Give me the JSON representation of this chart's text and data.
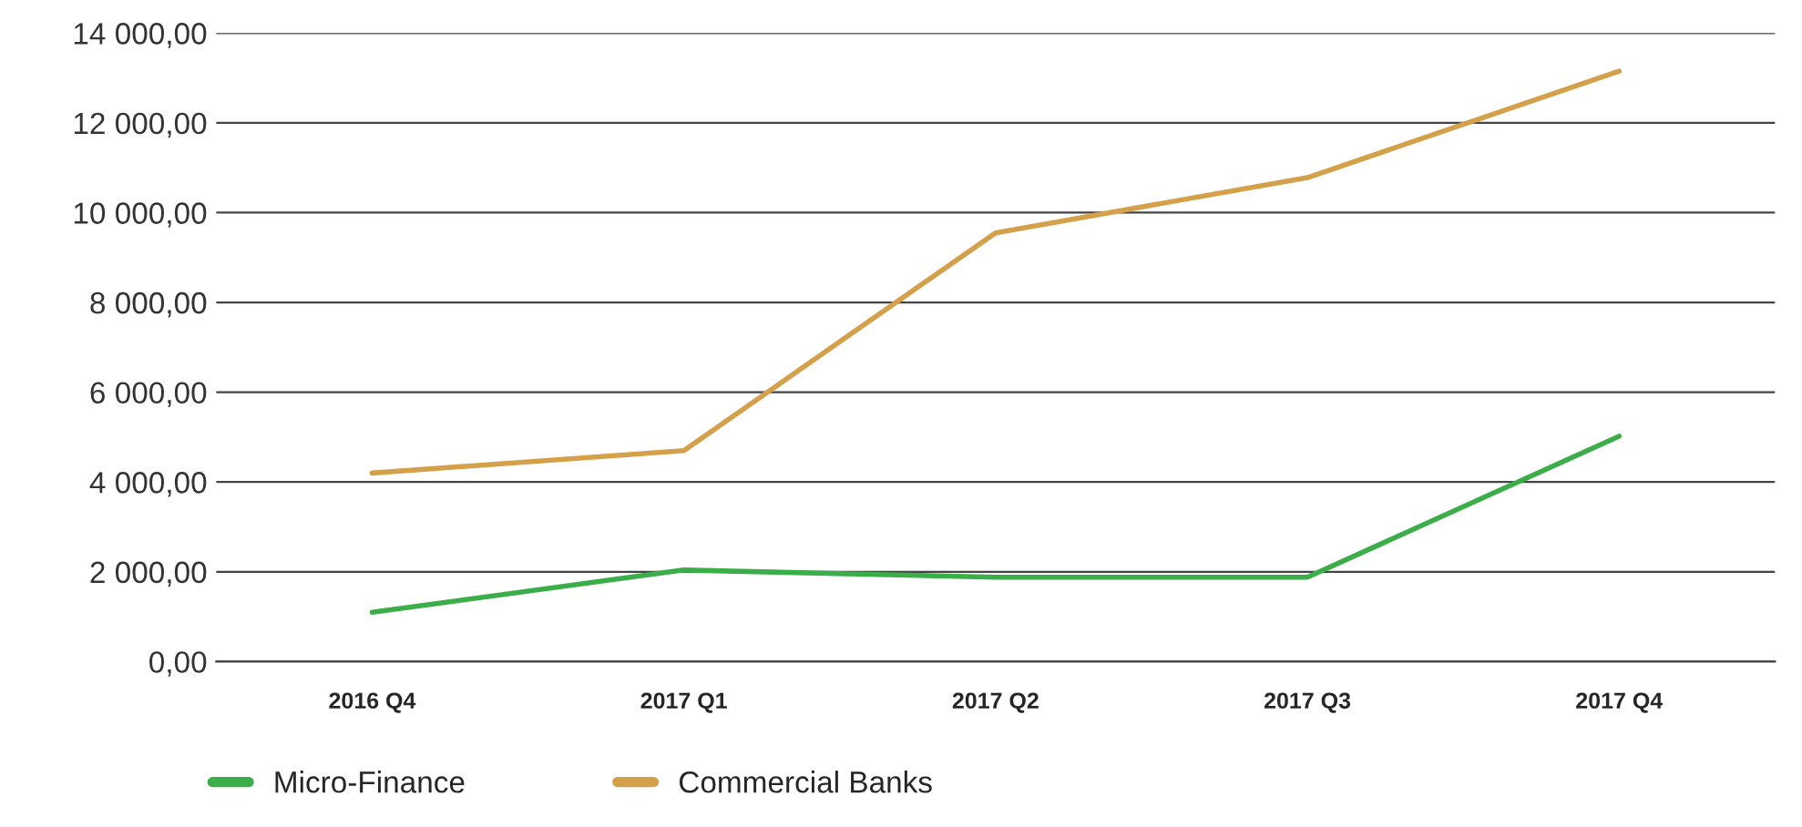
{
  "chart_data": {
    "type": "line",
    "categories": [
      "2016 Q4",
      "2017 Q1",
      "2017 Q2",
      "2017 Q3",
      "2017 Q4"
    ],
    "series": [
      {
        "name": "Micro-Finance",
        "color": "#3cae49",
        "values": [
          1100,
          2040,
          1880,
          1880,
          5020
        ]
      },
      {
        "name": "Commercial Banks",
        "color": "#d4a04a",
        "values": [
          4200,
          4700,
          9550,
          10780,
          13150
        ]
      }
    ],
    "ylim": [
      0,
      14000
    ],
    "yticks": [
      {
        "value": 0,
        "label": "0,00"
      },
      {
        "value": 2000,
        "label": "2 000,00"
      },
      {
        "value": 4000,
        "label": "4 000,00"
      },
      {
        "value": 6000,
        "label": "6 000,00"
      },
      {
        "value": 8000,
        "label": "8 000,00"
      },
      {
        "value": 10000,
        "label": "10 000,00"
      },
      {
        "value": 12000,
        "label": "12 000,00"
      },
      {
        "value": 14000,
        "label": "14 000,00"
      }
    ],
    "grid": "y",
    "legend": "bottom left",
    "marker": "none",
    "line_style": "solid"
  }
}
